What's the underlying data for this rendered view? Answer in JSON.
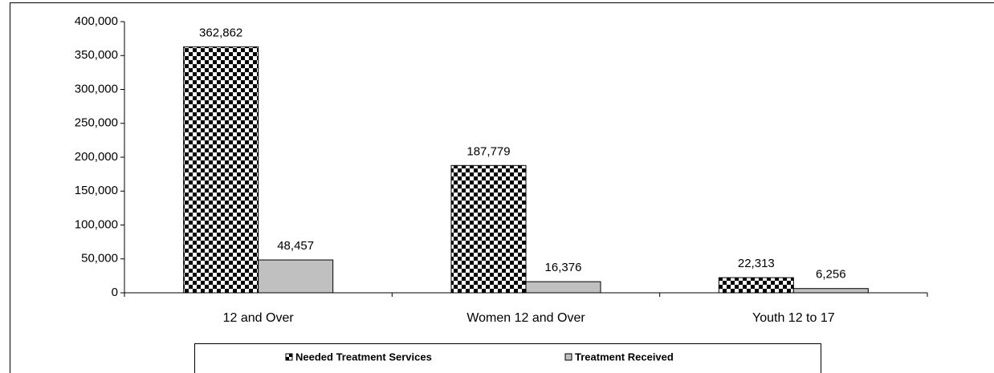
{
  "chart_data": {
    "type": "bar",
    "categories": [
      "12 and Over",
      "Women 12 and Over",
      "Youth 12 to 17"
    ],
    "series": [
      {
        "name": "Needed Treatment Services",
        "color": "#000000",
        "pattern": "checkerboard",
        "values": [
          362862,
          187779,
          22313
        ],
        "value_labels": [
          "362,862",
          "187,779",
          "22,313"
        ]
      },
      {
        "name": "Treatment Received",
        "color": "#c0c0c0",
        "values": [
          48457,
          16376,
          6256
        ],
        "value_labels": [
          "48,457",
          "16,376",
          "6,256"
        ]
      }
    ],
    "ylim": [
      0,
      400000
    ],
    "yticks": [
      {
        "value": 0,
        "label": "0"
      },
      {
        "value": 50000,
        "label": "50,000"
      },
      {
        "value": 100000,
        "label": "100,000"
      },
      {
        "value": 150000,
        "label": "150,000"
      },
      {
        "value": 200000,
        "label": "200,000"
      },
      {
        "value": 250000,
        "label": "250,000"
      },
      {
        "value": 300000,
        "label": "300,000"
      },
      {
        "value": 350000,
        "label": "350,000"
      },
      {
        "value": 400000,
        "label": "400,000"
      }
    ],
    "grid": false,
    "legend": "bottom"
  }
}
